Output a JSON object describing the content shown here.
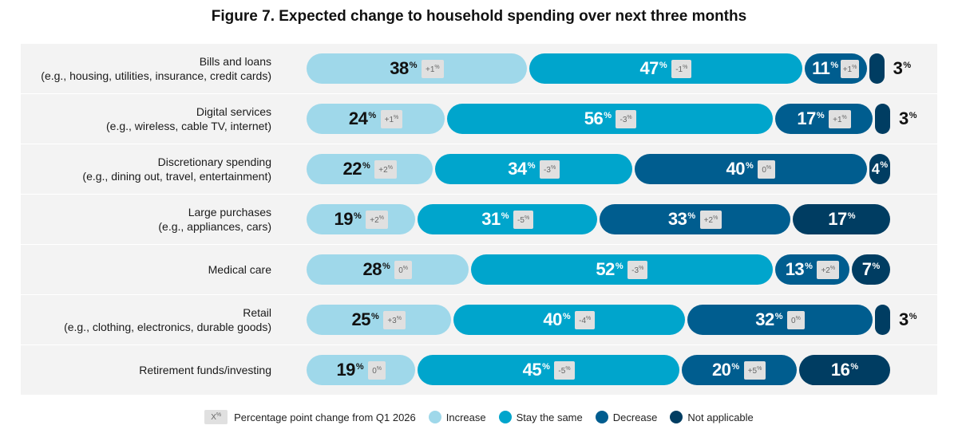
{
  "chart_data": {
    "type": "bar",
    "orientation": "horizontal-stacked",
    "title": "Figure 7. Expected change to household spending over next three months",
    "categories": [
      {
        "name": "Bills and loans",
        "example": "(e.g., housing, utilities, insurance, credit cards)"
      },
      {
        "name": "Digital services",
        "example": "(e.g., wireless, cable TV, internet)"
      },
      {
        "name": "Discretionary spending",
        "example": "(e.g., dining out, travel, entertainment)"
      },
      {
        "name": "Large purchases",
        "example": "(e.g., appliances, cars)"
      },
      {
        "name": "Medical care",
        "example": ""
      },
      {
        "name": "Retail",
        "example": "(e.g., clothing, electronics, durable goods)"
      },
      {
        "name": "Retirement funds/investing",
        "example": ""
      }
    ],
    "series": [
      {
        "name": "Increase",
        "color": "#9fd8ea",
        "values": [
          38,
          24,
          22,
          19,
          28,
          25,
          19
        ],
        "changes": [
          "+1",
          "+1",
          "+2",
          "+2",
          "0",
          "+3",
          "0"
        ]
      },
      {
        "name": "Stay the same",
        "color": "#00a5cc",
        "values": [
          47,
          56,
          34,
          31,
          52,
          40,
          45
        ],
        "changes": [
          "-1",
          "-3",
          "-3",
          "-5",
          "-3",
          "-4",
          "-5"
        ]
      },
      {
        "name": "Decrease",
        "color": "#005d8f",
        "values": [
          11,
          17,
          40,
          33,
          13,
          32,
          20
        ],
        "changes": [
          "+1",
          "+1",
          "0",
          "+2",
          "+2",
          "0",
          "+5"
        ]
      },
      {
        "name": "Not applicable",
        "color": "#003d62",
        "values": [
          3,
          3,
          4,
          17,
          7,
          3,
          16
        ],
        "changes": [
          "",
          "",
          "",
          "",
          "",
          "",
          ""
        ]
      }
    ],
    "unit": "%",
    "legend": {
      "change_sample": "X",
      "change_note": "Percentage point change from Q1 2026",
      "placement": "bottom"
    }
  }
}
